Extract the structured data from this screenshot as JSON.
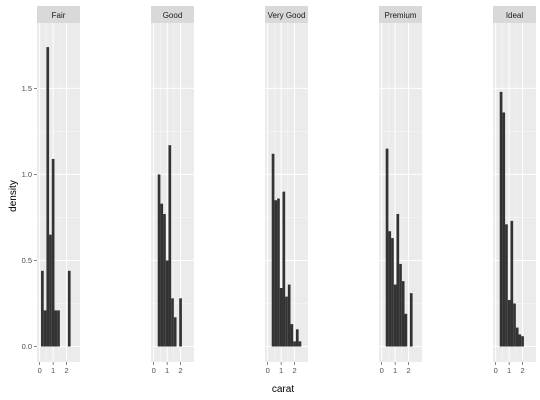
{
  "chart_data": {
    "type": "bar",
    "xlabel": "carat",
    "ylabel": "density",
    "xlim": [
      -0.2,
      3.0
    ],
    "ylim": [
      -0.09,
      1.88
    ],
    "x_ticks": [
      0,
      1,
      2
    ],
    "y_ticks": [
      0.0,
      0.5,
      1.0,
      1.5
    ],
    "y_tick_labels": [
      "0.0",
      "0.5",
      "1.0",
      "1.5"
    ],
    "grid": true,
    "bin_width": 0.2,
    "facets": [
      {
        "name": "Fair",
        "bins_x": [
          0.2,
          0.4,
          0.6,
          0.8,
          1.0,
          1.2,
          1.4,
          1.6,
          1.8,
          2.0,
          2.2
        ],
        "density": [
          0.44,
          0.21,
          1.74,
          0.65,
          1.09,
          0.21,
          0.21,
          0.0,
          0.0,
          0.0,
          0.44
        ]
      },
      {
        "name": "Good",
        "bins_x": [
          0.2,
          0.4,
          0.6,
          0.8,
          1.0,
          1.2,
          1.4,
          1.6,
          1.8,
          2.0
        ],
        "density": [
          0.0,
          1.0,
          0.83,
          0.77,
          0.5,
          1.17,
          0.28,
          0.17,
          0.0,
          0.28
        ]
      },
      {
        "name": "Very Good",
        "bins_x": [
          0.2,
          0.4,
          0.6,
          0.8,
          1.0,
          1.2,
          1.4,
          1.6,
          1.8,
          2.0,
          2.2,
          2.4
        ],
        "density": [
          0.0,
          1.12,
          0.85,
          0.86,
          0.34,
          0.9,
          0.29,
          0.36,
          0.13,
          0.03,
          0.1,
          0.03
        ]
      },
      {
        "name": "Premium",
        "bins_x": [
          0.2,
          0.4,
          0.6,
          0.8,
          1.0,
          1.2,
          1.4,
          1.6,
          1.8,
          2.0,
          2.2
        ],
        "density": [
          0.0,
          1.15,
          0.67,
          0.63,
          0.36,
          0.77,
          0.48,
          0.38,
          0.19,
          0.0,
          0.31
        ]
      },
      {
        "name": "Ideal",
        "bins_x": [
          0.2,
          0.4,
          0.6,
          0.8,
          1.0,
          1.2,
          1.4,
          1.6,
          1.8,
          2.0
        ],
        "density": [
          0.0,
          1.48,
          1.36,
          0.71,
          0.27,
          0.73,
          0.25,
          0.11,
          0.07,
          0.06
        ]
      }
    ]
  },
  "colors": {
    "panel_background": "#ebebeb",
    "grid_major": "#ffffff",
    "strip_background": "#d9d9d9",
    "bar_fill": "#333333",
    "tick_text": "#4d4d4d"
  }
}
